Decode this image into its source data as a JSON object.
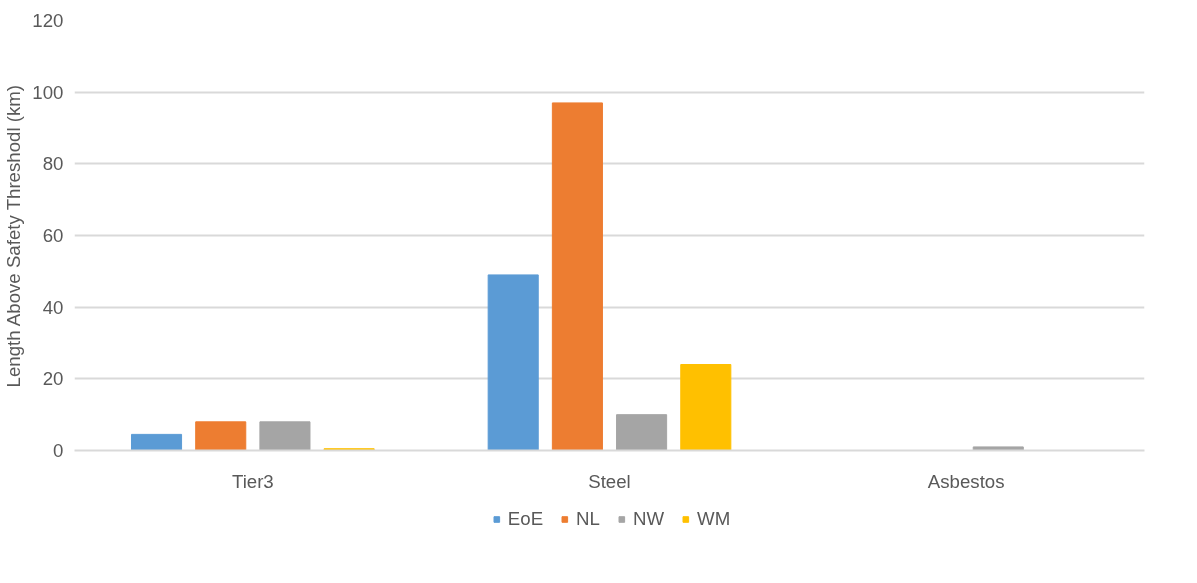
{
  "chart_data": {
    "type": "bar",
    "ylabel": "Length Above Safety Threshodl (km)",
    "categories": [
      "Tier3",
      "Steel",
      "Asbestos"
    ],
    "series": [
      {
        "name": "EoE",
        "color": "#5b9bd5",
        "values": [
          4.5,
          49,
          0
        ]
      },
      {
        "name": "NL",
        "color": "#ed7d31",
        "values": [
          8,
          97,
          0
        ]
      },
      {
        "name": "NW",
        "color": "#a5a5a5",
        "values": [
          8,
          10,
          1
        ]
      },
      {
        "name": "WM",
        "color": "#ffc000",
        "values": [
          0.5,
          24,
          0
        ]
      }
    ],
    "ylim": [
      0,
      120
    ],
    "yticks": [
      0,
      20,
      40,
      60,
      80,
      100,
      120
    ],
    "grid": "y",
    "legend": "bottom"
  }
}
